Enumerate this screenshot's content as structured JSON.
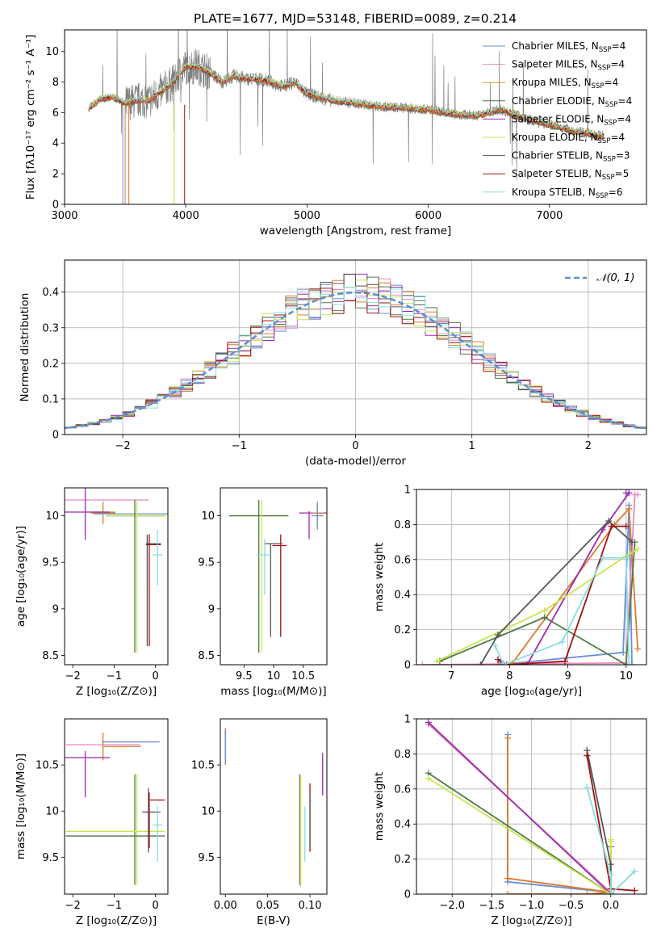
{
  "colors": {
    "ch_miles": "#6a8fd8",
    "sa_miles": "#e889c0",
    "kr_miles": "#c89a20",
    "ch_elodie": "#4f7a43",
    "sa_elodie": "#9a2bb0",
    "kr_elodie": "#c8e650",
    "ch_stelib": "#555555",
    "sa_stelib": "#a01010",
    "kr_stelib": "#87dde2",
    "orange": "#dd7a2a",
    "gaussian": "#5e8cd0",
    "obs": "#808080"
  },
  "chart_data": [
    {
      "id": "spectrum",
      "type": "line",
      "title": "PLATE=1677, MJD=53148, FIBERID=0089, z=0.214",
      "xlabel": "wavelength [Angstrom, rest frame]",
      "ylabel": "Flux [fλ10⁻¹⁷ erg cm⁻² s⁻¹ A⁻¹]",
      "xlim": [
        3000,
        7800
      ],
      "ylim": [
        0,
        11.4
      ],
      "xticks": [
        3000,
        4000,
        5000,
        6000,
        7000
      ],
      "yticks": [
        0,
        2,
        4,
        6,
        8,
        10
      ],
      "legend_loc": "upper right",
      "legend": [
        {
          "label": "Chabrier MILES, N",
          "sub": "SSP",
          "tail": "=4",
          "color": "ch_miles"
        },
        {
          "label": "Salpeter MILES, N",
          "sub": "SSP",
          "tail": "=4",
          "color": "sa_miles"
        },
        {
          "label": "Kroupa MILES, N",
          "sub": "SSP",
          "tail": "=4",
          "color": "kr_miles"
        },
        {
          "label": "Chabrier ELODIE, N",
          "sub": "SSP",
          "tail": "=4",
          "color": "ch_elodie"
        },
        {
          "label": "Salpeter ELODIE, N",
          "sub": "SSP",
          "tail": "=4",
          "color": "sa_elodie"
        },
        {
          "label": "Kroupa ELODIE, N",
          "sub": "SSP",
          "tail": "=4",
          "color": "kr_elodie"
        },
        {
          "label": "Chabrier STELIB, N",
          "sub": "SSP",
          "tail": "=3",
          "color": "ch_stelib"
        },
        {
          "label": "Salpeter STELIB, N",
          "sub": "SSP",
          "tail": "=5",
          "color": "sa_stelib"
        },
        {
          "label": "Kroupa STELIB, N",
          "sub": "SSP",
          "tail": "=6",
          "color": "kr_stelib"
        }
      ],
      "continuum": [
        [
          3200,
          6.3
        ],
        [
          3300,
          6.9
        ],
        [
          3400,
          7.0
        ],
        [
          3500,
          6.6
        ],
        [
          3600,
          6.8
        ],
        [
          3700,
          6.8
        ],
        [
          3800,
          7.4
        ],
        [
          3900,
          8.0
        ],
        [
          4000,
          9.0
        ],
        [
          4100,
          9.0
        ],
        [
          4200,
          8.6
        ],
        [
          4300,
          8.0
        ],
        [
          4400,
          8.4
        ],
        [
          4500,
          8.2
        ],
        [
          4600,
          8.2
        ],
        [
          4700,
          8.0
        ],
        [
          4800,
          7.7
        ],
        [
          4900,
          8.0
        ],
        [
          5000,
          7.2
        ],
        [
          5200,
          6.8
        ],
        [
          5400,
          6.6
        ],
        [
          5600,
          6.4
        ],
        [
          5800,
          6.3
        ],
        [
          6000,
          6.2
        ],
        [
          6200,
          5.9
        ],
        [
          6400,
          5.8
        ],
        [
          6600,
          6.2
        ],
        [
          6800,
          5.6
        ],
        [
          7000,
          5.2
        ],
        [
          7200,
          4.8
        ],
        [
          7400,
          4.5
        ]
      ]
    },
    {
      "id": "residuals",
      "type": "line",
      "xlabel": "(data-model)/error",
      "ylabel": "Normed distribution",
      "xlim": [
        -2.5,
        2.5
      ],
      "ylim": [
        0,
        0.49
      ],
      "xticks": [
        -2,
        -1,
        0,
        1,
        2
      ],
      "yticks": [
        0.0,
        0.1,
        0.2,
        0.3,
        0.4
      ],
      "legend": [
        "𝒩(0, 1)"
      ],
      "grid": true
    },
    {
      "id": "age_vs_Z",
      "type": "scatter",
      "xlabel": "Z [log₁₀(Z/Z⊙)]",
      "ylabel": "age  [log₁₀(age/yr)]",
      "xlim": [
        -2.2,
        0.3
      ],
      "ylim": [
        8.4,
        10.3
      ],
      "xticks": [
        -2,
        -1,
        0
      ],
      "yticks": [
        8.5,
        9.0,
        9.5,
        10.0
      ],
      "points": [
        {
          "x": -1.27,
          "y": 10.17,
          "xerr": 1.1,
          "yerr": 0.0,
          "color": "sa_miles"
        },
        {
          "x": -1.27,
          "y": 10.03,
          "xerr": 0.3,
          "yerr": 0.12,
          "color": "orange"
        },
        {
          "x": -1.27,
          "y": 10.04,
          "xerr": 0.3,
          "yerr": 0.02,
          "color": "kr_miles"
        },
        {
          "x": -1.7,
          "y": 10.04,
          "xerr": 0.6,
          "yerr": 0.3,
          "color": "sa_elodie"
        },
        {
          "x": -0.6,
          "y": 10.02,
          "xerr": 0.9,
          "yerr": 0.0,
          "color": "ch_miles"
        },
        {
          "x": -0.47,
          "y": 10.0,
          "xerr": 0.72,
          "yerr": 0.0,
          "color": "ch_elodie"
        },
        {
          "x": -0.47,
          "y": 10.0,
          "xerr": 0.72,
          "yerr": 0.0,
          "color": "kr_elodie"
        },
        {
          "x": -0.5,
          "y": 9.35,
          "xerr": 0.0,
          "yerr": 0.82,
          "color": "ch_elodie"
        },
        {
          "x": -0.45,
          "y": 9.35,
          "xerr": 0.0,
          "yerr": 0.82,
          "color": "kr_elodie"
        },
        {
          "x": -0.2,
          "y": 9.2,
          "xerr": 0.0,
          "yerr": 0.6,
          "color": "ch_stelib"
        },
        {
          "x": -0.15,
          "y": 9.2,
          "xerr": 0.0,
          "yerr": 0.6,
          "color": "sa_stelib"
        },
        {
          "x": -0.05,
          "y": 9.69,
          "xerr": 0.18,
          "yerr": 0.0,
          "color": "sa_stelib"
        },
        {
          "x": -0.05,
          "y": 9.7,
          "xerr": 0.18,
          "yerr": 0.0,
          "color": "ch_stelib"
        },
        {
          "x": 0.05,
          "y": 9.55,
          "xerr": 0.0,
          "yerr": 0.3,
          "color": "kr_stelib"
        },
        {
          "x": 0.05,
          "y": 9.58,
          "xerr": 0.12,
          "yerr": 0.0,
          "color": "kr_stelib"
        }
      ]
    },
    {
      "id": "age_vs_mass",
      "type": "scatter",
      "xlabel": "mass [log₁₀(M/M⊙)]",
      "ylabel": "",
      "xlim": [
        9.1,
        10.9
      ],
      "ylim": [
        8.4,
        10.3
      ],
      "xticks": [
        9.5,
        10.0,
        10.5
      ],
      "yticks": [
        8.5,
        9.0,
        9.5,
        10.0
      ],
      "points": [
        {
          "x": 10.68,
          "y": 10.03,
          "xerr": 0.25,
          "yerr": 0.0,
          "color": "sa_elodie"
        },
        {
          "x": 10.74,
          "y": 10.03,
          "xerr": 0.1,
          "yerr": 0.1,
          "color": "orange"
        },
        {
          "x": 10.74,
          "y": 10.0,
          "xerr": 0.1,
          "yerr": 0.15,
          "color": "ch_miles"
        },
        {
          "x": 10.6,
          "y": 9.9,
          "xerr": 0.0,
          "yerr": 0.15,
          "color": "sa_elodie"
        },
        {
          "x": 9.75,
          "y": 10.0,
          "xerr": 0.5,
          "yerr": 0.0,
          "color": "kr_elodie"
        },
        {
          "x": 9.75,
          "y": 10.0,
          "xerr": 0.5,
          "yerr": 0.0,
          "color": "ch_elodie"
        },
        {
          "x": 9.75,
          "y": 9.35,
          "xerr": 0.0,
          "yerr": 0.82,
          "color": "ch_elodie"
        },
        {
          "x": 9.8,
          "y": 9.35,
          "xerr": 0.0,
          "yerr": 0.82,
          "color": "kr_elodie"
        },
        {
          "x": 9.95,
          "y": 9.2,
          "xerr": 0.0,
          "yerr": 0.5,
          "color": "ch_stelib"
        },
        {
          "x": 10.12,
          "y": 9.25,
          "xerr": 0.0,
          "yerr": 0.55,
          "color": "sa_stelib"
        },
        {
          "x": 10.0,
          "y": 9.7,
          "xerr": 0.15,
          "yerr": 0.0,
          "color": "ch_stelib"
        },
        {
          "x": 10.1,
          "y": 9.68,
          "xerr": 0.12,
          "yerr": 0.0,
          "color": "sa_stelib"
        },
        {
          "x": 9.85,
          "y": 9.58,
          "xerr": 0.13,
          "yerr": 0.0,
          "color": "kr_stelib"
        },
        {
          "x": 9.85,
          "y": 9.45,
          "xerr": 0.0,
          "yerr": 0.3,
          "color": "kr_stelib"
        }
      ]
    },
    {
      "id": "massweight_vs_age",
      "type": "line",
      "xlabel": "age  [log₁₀(age/yr)]",
      "ylabel": "mass weight",
      "xlim": [
        6.4,
        10.35
      ],
      "ylim": [
        0,
        1.0
      ],
      "xticks": [
        7,
        8,
        9,
        10
      ],
      "yticks": [
        0.0,
        0.2,
        0.4,
        0.6,
        0.8,
        1.0
      ],
      "grid": true,
      "series": [
        {
          "color": "ch_miles",
          "x": [
            7.95,
            7.85,
            7.8,
            9.95,
            10.05,
            10.1
          ],
          "y": [
            0.0,
            0.02,
            0.0,
            0.07,
            0.91,
            0.0
          ]
        },
        {
          "color": "sa_miles",
          "x": [
            6.5,
            10.0,
            10.15,
            10.2
          ],
          "y": [
            0.0,
            0.01,
            0.97,
            0.97
          ]
        },
        {
          "color": "orange",
          "x": [
            7.8,
            8.05,
            9.8,
            10.05,
            10.2
          ],
          "y": [
            0.0,
            0.01,
            0.8,
            0.89,
            0.09
          ]
        },
        {
          "color": "ch_elodie",
          "x": [
            6.8,
            8.6,
            10.0,
            10.15
          ],
          "y": [
            0.02,
            0.27,
            0.0,
            0.7
          ]
        },
        {
          "color": "sa_elodie",
          "x": [
            8.3,
            9.6,
            10.05,
            10.0
          ],
          "y": [
            0.0,
            0.77,
            0.98,
            0.98
          ]
        },
        {
          "color": "kr_elodie",
          "x": [
            6.75,
            8.6,
            10.0,
            10.2
          ],
          "y": [
            0.02,
            0.31,
            0.62,
            0.66
          ]
        },
        {
          "color": "ch_stelib",
          "x": [
            7.5,
            7.8,
            9.7,
            10.1
          ],
          "y": [
            0.0,
            0.17,
            0.82,
            0.7
          ]
        },
        {
          "color": "sa_stelib",
          "x": [
            7.8,
            7.95,
            8.95,
            9.75,
            10.0
          ],
          "y": [
            0.03,
            0.0,
            0.02,
            0.79,
            0.79
          ]
        },
        {
          "color": "kr_stelib",
          "x": [
            7.75,
            7.9,
            8.9,
            9.6,
            10.0,
            10.05
          ],
          "y": [
            0.11,
            0.0,
            0.13,
            0.61,
            0.61,
            0.0
          ]
        }
      ]
    },
    {
      "id": "mass_vs_Z",
      "type": "scatter",
      "xlabel": "Z [log₁₀(Z/Z⊙)]",
      "ylabel": "mass [log₁₀(M/M⊙)]",
      "xlim": [
        -2.2,
        0.3
      ],
      "ylim": [
        9.1,
        11.0
      ],
      "xticks": [
        -2,
        -1,
        0
      ],
      "yticks": [
        9.5,
        10.0,
        10.5
      ],
      "points": [
        {
          "x": -0.6,
          "y": 10.75,
          "xerr": 0.7,
          "yerr": 0.0,
          "color": "ch_miles"
        },
        {
          "x": -1.27,
          "y": 10.72,
          "xerr": 0.9,
          "yerr": 0.0,
          "color": "sa_miles"
        },
        {
          "x": -0.8,
          "y": 10.7,
          "xerr": 0.45,
          "yerr": 0.0,
          "color": "orange"
        },
        {
          "x": -1.27,
          "y": 10.7,
          "xerr": 0.0,
          "yerr": 0.15,
          "color": "orange"
        },
        {
          "x": -1.7,
          "y": 10.58,
          "xerr": 0.6,
          "yerr": 0.0,
          "color": "sa_elodie"
        },
        {
          "x": -1.7,
          "y": 10.4,
          "xerr": 0.0,
          "yerr": 0.25,
          "color": "sa_elodie"
        },
        {
          "x": -0.5,
          "y": 9.8,
          "xerr": 0.0,
          "yerr": 0.6,
          "color": "ch_elodie"
        },
        {
          "x": -0.45,
          "y": 9.8,
          "xerr": 0.0,
          "yerr": 0.6,
          "color": "kr_elodie"
        },
        {
          "x": -0.97,
          "y": 9.78,
          "xerr": 1.2,
          "yerr": 0.0,
          "color": "kr_elodie"
        },
        {
          "x": -0.97,
          "y": 9.73,
          "xerr": 1.2,
          "yerr": 0.0,
          "color": "ch_elodie"
        },
        {
          "x": 0.05,
          "y": 10.12,
          "xerr": 0.18,
          "yerr": 0.0,
          "color": "sa_stelib"
        },
        {
          "x": -0.1,
          "y": 9.99,
          "xerr": 0.22,
          "yerr": 0.0,
          "color": "ch_stelib"
        },
        {
          "x": -0.17,
          "y": 9.9,
          "xerr": 0.0,
          "yerr": 0.35,
          "color": "ch_stelib"
        },
        {
          "x": -0.15,
          "y": 9.9,
          "xerr": 0.0,
          "yerr": 0.3,
          "color": "sa_stelib"
        },
        {
          "x": 0.05,
          "y": 9.85,
          "xerr": 0.12,
          "yerr": 0.0,
          "color": "kr_stelib"
        },
        {
          "x": 0.05,
          "y": 9.75,
          "xerr": 0.0,
          "yerr": 0.3,
          "color": "kr_stelib"
        }
      ]
    },
    {
      "id": "mass_vs_EBV",
      "type": "scatter",
      "xlabel": "E(B-V)",
      "ylabel": "",
      "xlim": [
        -0.006,
        0.12
      ],
      "ylim": [
        9.1,
        11.0
      ],
      "xticks": [
        0.0,
        0.05,
        0.1
      ],
      "yticks": [
        9.5,
        10.0,
        10.5
      ],
      "points": [
        {
          "x": 0.0,
          "y": 10.7,
          "xerr": 0.0,
          "yerr": 0.2,
          "color": "orange"
        },
        {
          "x": 0.0,
          "y": 10.7,
          "xerr": 0.0,
          "yerr": 0.18,
          "color": "ch_miles"
        },
        {
          "x": 0.088,
          "y": 9.8,
          "xerr": 0.0,
          "yerr": 0.6,
          "color": "ch_elodie"
        },
        {
          "x": 0.089,
          "y": 9.78,
          "xerr": 0.0,
          "yerr": 0.6,
          "color": "kr_elodie"
        },
        {
          "x": 0.094,
          "y": 9.75,
          "xerr": 0.0,
          "yerr": 0.3,
          "color": "kr_stelib"
        },
        {
          "x": 0.1,
          "y": 9.93,
          "xerr": 0.0,
          "yerr": 0.37,
          "color": "sa_stelib"
        },
        {
          "x": 0.1,
          "y": 9.9,
          "xerr": 0.0,
          "yerr": 0.3,
          "color": "ch_stelib"
        },
        {
          "x": 0.115,
          "y": 10.4,
          "xerr": 0.0,
          "yerr": 0.23,
          "color": "sa_elodie"
        }
      ]
    },
    {
      "id": "massweight_vs_Z",
      "type": "line",
      "xlabel": "Z [log₁₀(Z/Z⊙)]",
      "ylabel": "mass weight",
      "xlim": [
        -2.45,
        0.45
      ],
      "ylim": [
        0,
        1.0
      ],
      "xticks": [
        -2.0,
        -1.5,
        -1.0,
        -0.5,
        0.0
      ],
      "yticks": [
        0.0,
        0.2,
        0.4,
        0.6,
        0.8,
        1.0
      ],
      "grid": true,
      "series": [
        {
          "color": "ch_miles",
          "x": [
            -1.3,
            -1.3,
            0.0,
            0.0
          ],
          "y": [
            0.91,
            0.07,
            0.01,
            0.0
          ]
        },
        {
          "color": "sa_miles",
          "x": [
            -2.3,
            0.0,
            0.0
          ],
          "y": [
            0.97,
            0.01,
            0.01
          ]
        },
        {
          "color": "orange",
          "x": [
            -1.3,
            -1.3,
            0.0,
            -0.3,
            -1.3
          ],
          "y": [
            0.89,
            0.09,
            0.01,
            0.0,
            0.0
          ]
        },
        {
          "color": "ch_elodie",
          "x": [
            -2.3,
            0.0,
            0.0
          ],
          "y": [
            0.69,
            0.0,
            0.27
          ]
        },
        {
          "color": "sa_elodie",
          "x": [
            -2.3,
            0.0,
            0.0
          ],
          "y": [
            0.98,
            0.0,
            0.0
          ]
        },
        {
          "color": "kr_elodie",
          "x": [
            -2.3,
            0.0,
            0.0,
            0.0
          ],
          "y": [
            0.66,
            0.0,
            0.31,
            0.3
          ]
        },
        {
          "color": "ch_stelib",
          "x": [
            -0.3,
            0.0,
            0.0
          ],
          "y": [
            0.82,
            0.17,
            0.0
          ]
        },
        {
          "color": "sa_stelib",
          "x": [
            -0.3,
            0.0,
            0.3
          ],
          "y": [
            0.79,
            0.03,
            0.02
          ]
        },
        {
          "color": "kr_stelib",
          "x": [
            -0.3,
            0.0,
            0.0,
            0.3
          ],
          "y": [
            0.61,
            0.11,
            0.0,
            0.13
          ]
        }
      ]
    }
  ]
}
